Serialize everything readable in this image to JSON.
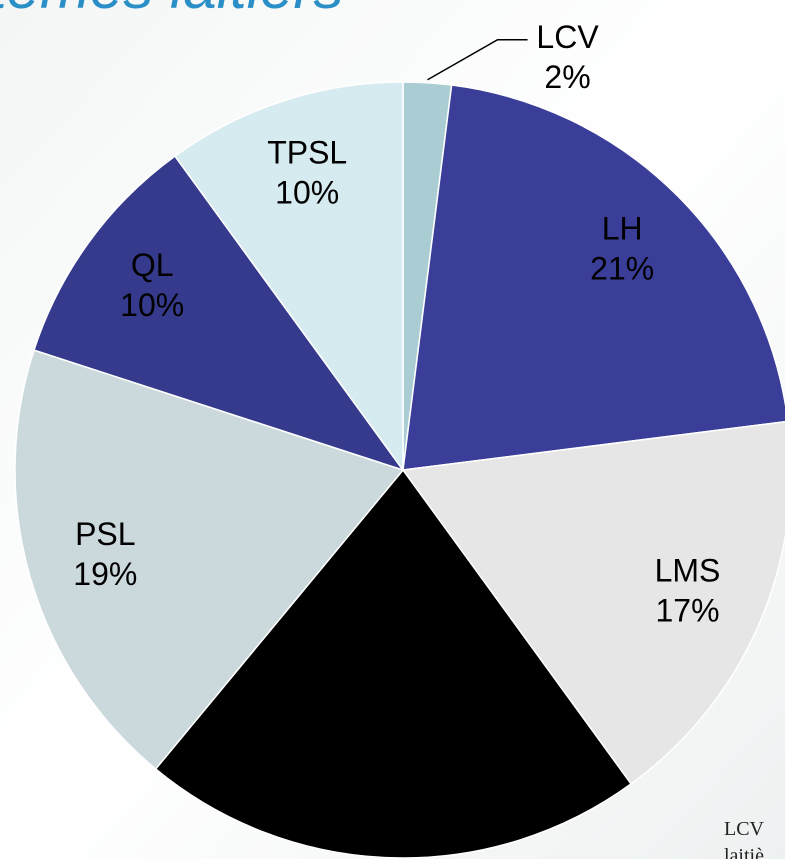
{
  "chart_data": {
    "type": "pie",
    "title": "stèmes laitiers",
    "categories": [
      "LCV",
      "LH",
      "LMS",
      null,
      "PSL",
      "QL",
      "TPSL"
    ],
    "values": [
      2,
      21,
      17,
      21,
      19,
      10,
      10
    ],
    "value_labels": [
      "2%",
      "21%",
      "17%",
      null,
      "19%",
      "10%",
      "10%"
    ],
    "colors": [
      "#a9cdd3",
      "#3a3e98",
      "#e6e6e6",
      "#000000",
      "#cbd9dc",
      "#363a8c",
      "#d6ebf0"
    ],
    "notes": [
      "LCV",
      "laitiè"
    ]
  }
}
